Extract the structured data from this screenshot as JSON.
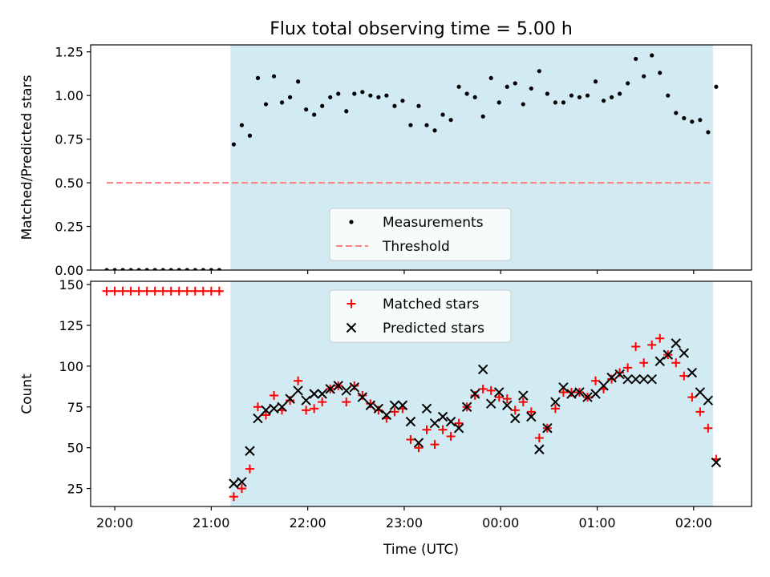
{
  "figure": {
    "title": "Flux total observing time = 5.00 h"
  },
  "chart_data": [
    {
      "type": "scatter",
      "name": "ratio-panel",
      "ylabel": "Matched/Predicted stars",
      "xlabel": "",
      "xlim": [
        "19:45",
        "02:36"
      ],
      "ylim": [
        0,
        1.29
      ],
      "yticks": [
        0.0,
        0.25,
        0.5,
        0.75,
        1.0,
        1.25
      ],
      "ytick_labels": [
        "0.00",
        "0.25",
        "0.50",
        "0.75",
        "1.00",
        "1.25"
      ],
      "observing_window": [
        "21:12",
        "02:12"
      ],
      "observing_window_color": "#add8e6",
      "legend": {
        "placement": "lower-center",
        "entries": [
          "Measurements",
          "Threshold"
        ]
      },
      "threshold": {
        "name": "Threshold",
        "y": 0.5,
        "x_range": [
          "19:55",
          "02:12"
        ],
        "color": "#ff7f7f",
        "style": "dashed"
      },
      "series": [
        {
          "name": "Measurements",
          "color": "#000000",
          "marker": "dot",
          "points": [
            [
              "19:55",
              0.0
            ],
            [
              "20:00",
              0.0
            ],
            [
              "20:05",
              0.0
            ],
            [
              "20:10",
              0.0
            ],
            [
              "20:15",
              0.0
            ],
            [
              "20:20",
              0.0
            ],
            [
              "20:25",
              0.0
            ],
            [
              "20:30",
              0.0
            ],
            [
              "20:35",
              0.0
            ],
            [
              "20:40",
              0.0
            ],
            [
              "20:45",
              0.0
            ],
            [
              "20:50",
              0.0
            ],
            [
              "20:55",
              0.0
            ],
            [
              "21:00",
              0.0
            ],
            [
              "21:05",
              0.0
            ],
            [
              "21:14",
              0.72
            ],
            [
              "21:19",
              0.83
            ],
            [
              "21:24",
              0.77
            ],
            [
              "21:29",
              1.1
            ],
            [
              "21:34",
              0.95
            ],
            [
              "21:39",
              1.11
            ],
            [
              "21:44",
              0.96
            ],
            [
              "21:49",
              0.99
            ],
            [
              "21:54",
              1.08
            ],
            [
              "21:59",
              0.92
            ],
            [
              "22:04",
              0.89
            ],
            [
              "22:09",
              0.94
            ],
            [
              "22:14",
              0.99
            ],
            [
              "22:19",
              1.01
            ],
            [
              "22:24",
              0.91
            ],
            [
              "22:29",
              1.01
            ],
            [
              "22:34",
              1.02
            ],
            [
              "22:39",
              1.0
            ],
            [
              "22:44",
              0.99
            ],
            [
              "22:49",
              1.0
            ],
            [
              "22:54",
              0.94
            ],
            [
              "22:59",
              0.97
            ],
            [
              "23:04",
              0.83
            ],
            [
              "23:09",
              0.94
            ],
            [
              "23:14",
              0.83
            ],
            [
              "23:19",
              0.8
            ],
            [
              "23:24",
              0.89
            ],
            [
              "23:29",
              0.86
            ],
            [
              "23:34",
              1.05
            ],
            [
              "23:39",
              1.01
            ],
            [
              "23:44",
              0.99
            ],
            [
              "23:49",
              0.88
            ],
            [
              "23:54",
              1.1
            ],
            [
              "23:59",
              0.96
            ],
            [
              "00:04",
              1.05
            ],
            [
              "00:09",
              1.07
            ],
            [
              "00:14",
              0.95
            ],
            [
              "00:19",
              1.04
            ],
            [
              "00:24",
              1.14
            ],
            [
              "00:29",
              1.01
            ],
            [
              "00:34",
              0.96
            ],
            [
              "00:39",
              0.96
            ],
            [
              "00:44",
              1.0
            ],
            [
              "00:49",
              0.99
            ],
            [
              "00:54",
              1.0
            ],
            [
              "00:59",
              1.08
            ],
            [
              "01:04",
              0.97
            ],
            [
              "01:09",
              0.99
            ],
            [
              "01:14",
              1.01
            ],
            [
              "01:19",
              1.07
            ],
            [
              "01:24",
              1.21
            ],
            [
              "01:29",
              1.11
            ],
            [
              "01:34",
              1.23
            ],
            [
              "01:39",
              1.13
            ],
            [
              "01:44",
              1.0
            ],
            [
              "01:49",
              0.9
            ],
            [
              "01:54",
              0.87
            ],
            [
              "01:59",
              0.85
            ],
            [
              "02:04",
              0.86
            ],
            [
              "02:09",
              0.79
            ],
            [
              "02:14",
              1.05
            ]
          ]
        }
      ]
    },
    {
      "type": "scatter",
      "name": "count-panel",
      "ylabel": "Count",
      "xlabel": "Time (UTC)",
      "xlim": [
        "19:45",
        "02:36"
      ],
      "ylim": [
        14,
        152
      ],
      "yticks": [
        25,
        50,
        75,
        100,
        125,
        150
      ],
      "ytick_labels": [
        "25",
        "50",
        "75",
        "100",
        "125",
        "150"
      ],
      "xticks": [
        "20:00",
        "21:00",
        "22:00",
        "23:00",
        "00:00",
        "01:00",
        "02:00"
      ],
      "xtick_labels": [
        "20:00",
        "21:00",
        "22:00",
        "23:00",
        "00:00",
        "01:00",
        "02:00"
      ],
      "observing_window": [
        "21:12",
        "02:12"
      ],
      "observing_window_color": "#add8e6",
      "legend": {
        "placement": "top-center",
        "entries": [
          "Matched stars",
          "Predicted stars"
        ]
      },
      "series": [
        {
          "name": "Matched stars",
          "color": "#ff0000",
          "marker": "plus",
          "points": [
            [
              "19:55",
              146
            ],
            [
              "20:00",
              146
            ],
            [
              "20:05",
              146
            ],
            [
              "20:10",
              146
            ],
            [
              "20:15",
              146
            ],
            [
              "20:20",
              146
            ],
            [
              "20:25",
              146
            ],
            [
              "20:30",
              146
            ],
            [
              "20:35",
              146
            ],
            [
              "20:40",
              146
            ],
            [
              "20:45",
              146
            ],
            [
              "20:50",
              146
            ],
            [
              "20:55",
              146
            ],
            [
              "21:00",
              146
            ],
            [
              "21:05",
              146
            ],
            [
              "21:14",
              20
            ],
            [
              "21:19",
              25
            ],
            [
              "21:24",
              37
            ],
            [
              "21:29",
              75
            ],
            [
              "21:34",
              70
            ],
            [
              "21:39",
              82
            ],
            [
              "21:44",
              73
            ],
            [
              "21:49",
              79
            ],
            [
              "21:54",
              91
            ],
            [
              "21:59",
              73
            ],
            [
              "22:04",
              74
            ],
            [
              "22:09",
              78
            ],
            [
              "22:14",
              86
            ],
            [
              "22:19",
              88
            ],
            [
              "22:24",
              78
            ],
            [
              "22:29",
              88
            ],
            [
              "22:34",
              82
            ],
            [
              "22:39",
              77
            ],
            [
              "22:44",
              73
            ],
            [
              "22:49",
              68
            ],
            [
              "22:54",
              72
            ],
            [
              "22:59",
              74
            ],
            [
              "23:04",
              55
            ],
            [
              "23:09",
              50
            ],
            [
              "23:14",
              61
            ],
            [
              "23:19",
              52
            ],
            [
              "23:24",
              61
            ],
            [
              "23:29",
              57
            ],
            [
              "23:34",
              65
            ],
            [
              "23:39",
              75
            ],
            [
              "23:44",
              82
            ],
            [
              "23:49",
              86
            ],
            [
              "23:54",
              85
            ],
            [
              "23:59",
              81
            ],
            [
              "00:04",
              80
            ],
            [
              "00:09",
              73
            ],
            [
              "00:14",
              78
            ],
            [
              "00:19",
              72
            ],
            [
              "00:24",
              56
            ],
            [
              "00:29",
              62
            ],
            [
              "00:34",
              74
            ],
            [
              "00:39",
              84
            ],
            [
              "00:44",
              84
            ],
            [
              "00:49",
              84
            ],
            [
              "00:54",
              81
            ],
            [
              "00:59",
              91
            ],
            [
              "01:04",
              86
            ],
            [
              "01:09",
              92
            ],
            [
              "01:14",
              96
            ],
            [
              "01:19",
              99
            ],
            [
              "01:24",
              112
            ],
            [
              "01:29",
              102
            ],
            [
              "01:34",
              113
            ],
            [
              "01:39",
              117
            ],
            [
              "01:44",
              107
            ],
            [
              "01:49",
              102
            ],
            [
              "01:54",
              94
            ],
            [
              "01:59",
              81
            ],
            [
              "02:04",
              72
            ],
            [
              "02:09",
              62
            ],
            [
              "02:14",
              43
            ]
          ]
        },
        {
          "name": "Predicted stars",
          "color": "#000000",
          "marker": "x",
          "points": [
            [
              "21:14",
              28
            ],
            [
              "21:19",
              29
            ],
            [
              "21:24",
              48
            ],
            [
              "21:29",
              68
            ],
            [
              "21:34",
              73
            ],
            [
              "21:39",
              74
            ],
            [
              "21:44",
              75
            ],
            [
              "21:49",
              80
            ],
            [
              "21:54",
              85
            ],
            [
              "21:59",
              79
            ],
            [
              "22:04",
              83
            ],
            [
              "22:09",
              83
            ],
            [
              "22:14",
              86
            ],
            [
              "22:19",
              88
            ],
            [
              "22:24",
              85
            ],
            [
              "22:29",
              87
            ],
            [
              "22:34",
              81
            ],
            [
              "22:39",
              76
            ],
            [
              "22:44",
              74
            ],
            [
              "22:49",
              70
            ],
            [
              "22:54",
              76
            ],
            [
              "22:59",
              76
            ],
            [
              "23:04",
              66
            ],
            [
              "23:09",
              53
            ],
            [
              "23:14",
              74
            ],
            [
              "23:19",
              65
            ],
            [
              "23:24",
              69
            ],
            [
              "23:29",
              66
            ],
            [
              "23:34",
              62
            ],
            [
              "23:39",
              75
            ],
            [
              "23:44",
              83
            ],
            [
              "23:49",
              98
            ],
            [
              "23:54",
              77
            ],
            [
              "23:59",
              84
            ],
            [
              "00:04",
              76
            ],
            [
              "00:09",
              68
            ],
            [
              "00:14",
              82
            ],
            [
              "00:19",
              69
            ],
            [
              "00:24",
              49
            ],
            [
              "00:29",
              62
            ],
            [
              "00:34",
              78
            ],
            [
              "00:39",
              87
            ],
            [
              "00:44",
              83
            ],
            [
              "00:49",
              84
            ],
            [
              "00:54",
              81
            ],
            [
              "00:59",
              83
            ],
            [
              "01:04",
              88
            ],
            [
              "01:09",
              93
            ],
            [
              "01:14",
              95
            ],
            [
              "01:19",
              92
            ],
            [
              "01:24",
              92
            ],
            [
              "01:29",
              92
            ],
            [
              "01:34",
              92
            ],
            [
              "01:39",
              103
            ],
            [
              "01:44",
              107
            ],
            [
              "01:49",
              114
            ],
            [
              "01:54",
              108
            ],
            [
              "01:59",
              96
            ],
            [
              "02:04",
              84
            ],
            [
              "02:09",
              79
            ],
            [
              "02:14",
              41
            ]
          ]
        }
      ]
    }
  ]
}
